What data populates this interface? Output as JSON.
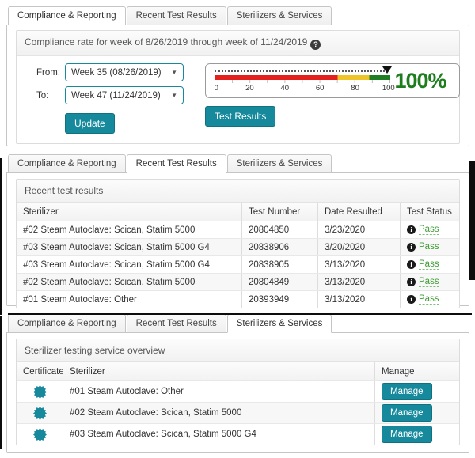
{
  "colors": {
    "teal": "#17899C",
    "pass_green": "#3E9C35",
    "gauge_red": "#E3201B",
    "gauge_yellow": "#EFC429",
    "gauge_green": "#1F7E21",
    "value_green": "#1E7E1E"
  },
  "tabs": [
    "Compliance & Reporting",
    "Recent Test Results",
    "Sterilizers & Services"
  ],
  "panel1": {
    "header": "Compliance rate for week of 8/26/2019 through week of 11/24/2019",
    "help_glyph": "?",
    "from_label": "From:",
    "from_value": "Week 35 (08/26/2019)",
    "to_label": "To:",
    "to_value": "Week 47 (11/24/2019)",
    "caret": "▼",
    "update_button": "Update",
    "test_results_button": "Test Results",
    "gauge": {
      "value": 100,
      "value_label": "100%",
      "red_end": 70,
      "yellow_end": 88,
      "max": 100,
      "ticks": [
        "0",
        "20",
        "40",
        "60",
        "80",
        "100"
      ]
    }
  },
  "panel2": {
    "header": "Recent test results",
    "columns": [
      "Sterilizer",
      "Test Number",
      "Date Resulted",
      "Test Status"
    ],
    "info_glyph": "i",
    "rows": [
      {
        "sterilizer": "#02 Steam Autoclave: Scican, Statim 5000",
        "test_number": "20804850",
        "date": "3/23/2020",
        "status": "Pass"
      },
      {
        "sterilizer": "#03 Steam Autoclave: Scican, Statim 5000 G4",
        "test_number": "20838906",
        "date": "3/20/2020",
        "status": "Pass"
      },
      {
        "sterilizer": "#03 Steam Autoclave: Scican, Statim 5000 G4",
        "test_number": "20838905",
        "date": "3/13/2020",
        "status": "Pass"
      },
      {
        "sterilizer": "#02 Steam Autoclave: Scican, Statim 5000",
        "test_number": "20804849",
        "date": "3/13/2020",
        "status": "Pass"
      },
      {
        "sterilizer": "#01 Steam Autoclave: Other",
        "test_number": "20393949",
        "date": "3/13/2020",
        "status": "Pass"
      }
    ]
  },
  "panel3": {
    "header": "Sterilizer testing service overview",
    "columns": [
      "Certificate",
      "Sterilizer",
      "Manage"
    ],
    "rows": [
      {
        "sterilizer": "#01 Steam Autoclave: Other",
        "manage": "Manage"
      },
      {
        "sterilizer": "#02 Steam Autoclave: Scican, Statim 5000",
        "manage": "Manage"
      },
      {
        "sterilizer": "#03 Steam Autoclave: Scican, Statim 5000 G4",
        "manage": "Manage"
      }
    ]
  }
}
